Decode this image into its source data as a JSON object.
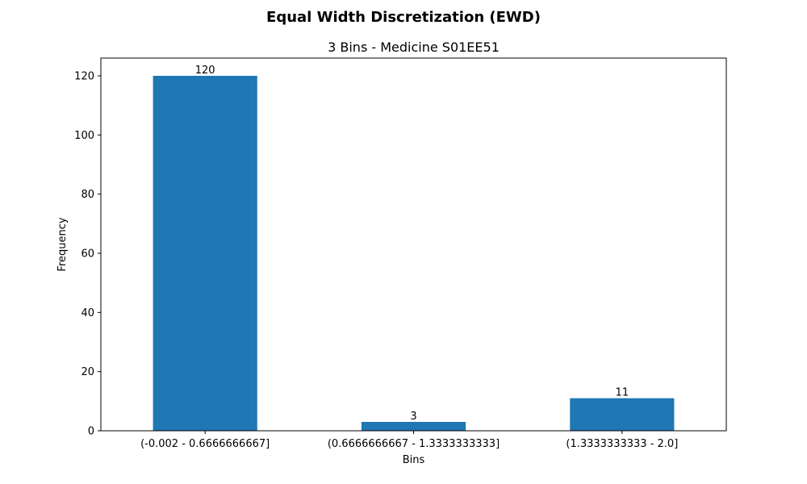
{
  "chart_data": {
    "type": "bar",
    "suptitle": "Equal Width Discretization (EWD)",
    "title": "3 Bins - Medicine S01EE51",
    "xlabel": "Bins",
    "ylabel": "Frequency",
    "categories": [
      "(-0.002 - 0.6666666667]",
      "(0.6666666667 - 1.3333333333]",
      "(1.3333333333 - 2.0]"
    ],
    "values": [
      120,
      3,
      11
    ],
    "ylim": [
      0,
      126
    ],
    "yticks": [
      0,
      20,
      40,
      60,
      80,
      100,
      120
    ],
    "bar_color": "#1f77b4",
    "grid": false,
    "data_labels": true
  }
}
